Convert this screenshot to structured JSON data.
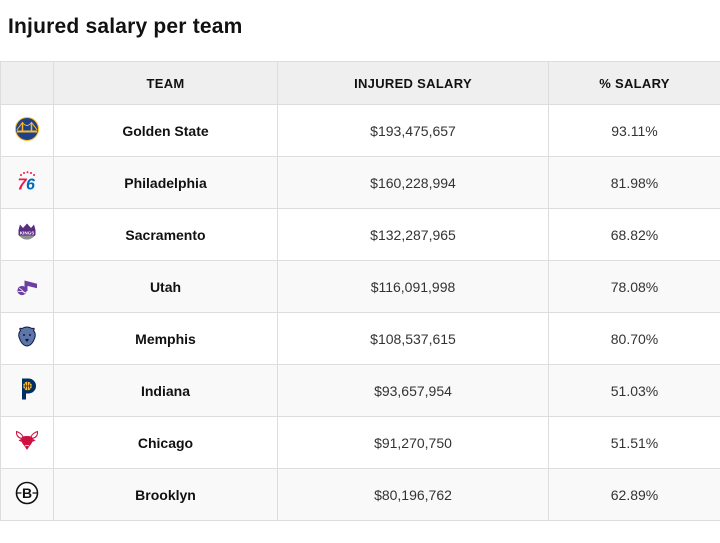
{
  "page": {
    "title": "Injured salary per team"
  },
  "table": {
    "columns": [
      {
        "key": "logo",
        "label": ""
      },
      {
        "key": "team",
        "label": "TEAM"
      },
      {
        "key": "salary",
        "label": "INJURED SALARY"
      },
      {
        "key": "percent",
        "label": "% SALARY"
      }
    ],
    "rows": [
      {
        "logo": "warriors",
        "team": "Golden State",
        "salary": "$193,475,657",
        "percent": "93.11%"
      },
      {
        "logo": "sixers",
        "team": "Philadelphia",
        "salary": "$160,228,994",
        "percent": "81.98%"
      },
      {
        "logo": "kings",
        "team": "Sacramento",
        "salary": "$132,287,965",
        "percent": "68.82%"
      },
      {
        "logo": "jazz",
        "team": "Utah",
        "salary": "$116,091,998",
        "percent": "78.08%"
      },
      {
        "logo": "grizzlies",
        "team": "Memphis",
        "salary": "$108,537,615",
        "percent": "80.70%"
      },
      {
        "logo": "pacers",
        "team": "Indiana",
        "salary": "$93,657,954",
        "percent": "51.03%"
      },
      {
        "logo": "bulls",
        "team": "Chicago",
        "salary": "$91,270,750",
        "percent": "51.51%"
      },
      {
        "logo": "nets",
        "team": "Brooklyn",
        "salary": "$80,196,762",
        "percent": "62.89%"
      }
    ]
  },
  "colors": {
    "header_bg": "#efefef",
    "row_alt_bg": "#f9f9f9",
    "border": "#dddddd",
    "warriors_blue": "#1D428A",
    "warriors_gold": "#FDB927",
    "sixers_red": "#ED174C",
    "sixers_blue": "#006BB6",
    "kings_purple": "#5A2D81",
    "kings_silver": "#8E9090",
    "jazz_purple": "#6E3FA3",
    "grizzlies_blue": "#5D76A9",
    "grizzlies_navy": "#12173F",
    "pacers_navy": "#002D62",
    "pacers_gold": "#FDBB30",
    "bulls_red": "#CE1141",
    "nets_black": "#111111"
  }
}
